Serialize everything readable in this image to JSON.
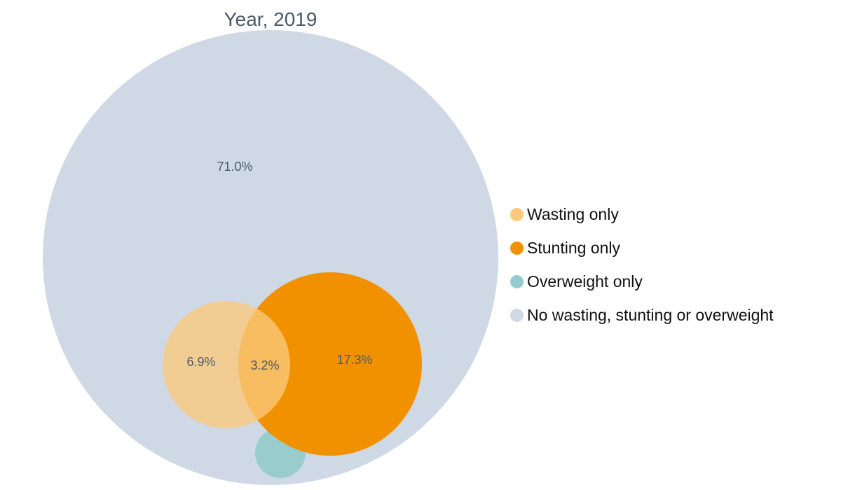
{
  "chart_data": {
    "type": "venn",
    "title": "Year, 2019",
    "sets": [
      {
        "name": "No wasting, stunting or overweight",
        "color": "#cfd9e5"
      },
      {
        "name": "Wasting only",
        "color": "#fbc97c"
      },
      {
        "name": "Stunting only",
        "color": "#f29100"
      },
      {
        "name": "Overweight only",
        "color": "#95cccb"
      }
    ],
    "labels": [
      {
        "region": "no-wasting-stunting-overweight",
        "value": 71.0,
        "text": "71.0%"
      },
      {
        "region": "wasting-only",
        "value": 6.9,
        "text": "6.9%"
      },
      {
        "region": "wasting-and-stunting",
        "value": 3.2,
        "text": "3.2%"
      },
      {
        "region": "stunting-only",
        "value": 17.3,
        "text": "17.3%"
      }
    ],
    "legend": {
      "position": "right",
      "entries": [
        {
          "label": "Wasting only",
          "color": "#fbc97c"
        },
        {
          "label": "Stunting only",
          "color": "#f29100"
        },
        {
          "label": "Overweight only",
          "color": "#95cccb"
        },
        {
          "label": "No wasting, stunting or overweight",
          "color": "#cfd9e5"
        }
      ]
    }
  }
}
